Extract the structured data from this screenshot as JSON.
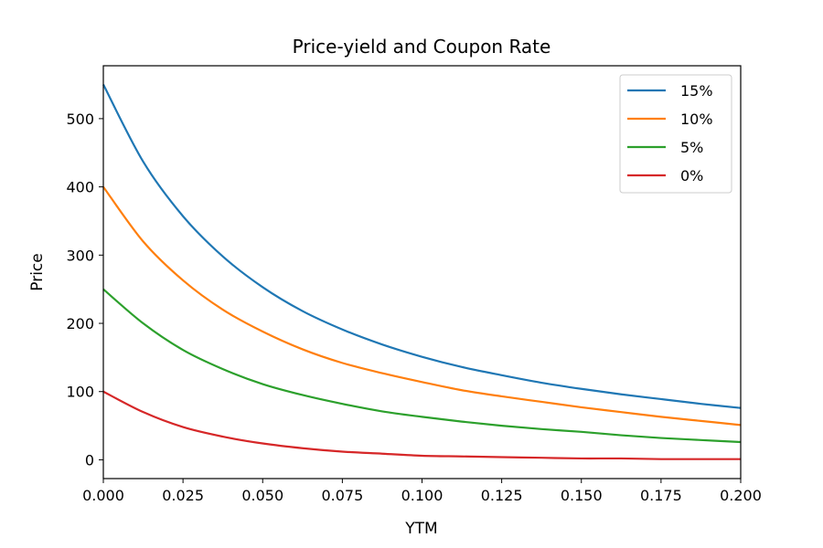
{
  "chart_data": {
    "type": "line",
    "title": "Price-yield and Coupon Rate",
    "xlabel": "YTM",
    "ylabel": "Price",
    "xlim": [
      0.0,
      0.2
    ],
    "ylim": [
      -27.5,
      577.5
    ],
    "x_ticks": [
      0.0,
      0.025,
      0.05,
      0.075,
      0.1,
      0.125,
      0.15,
      0.175,
      0.2
    ],
    "x_tick_labels": [
      "0.000",
      "0.025",
      "0.050",
      "0.075",
      "0.100",
      "0.125",
      "0.150",
      "0.175",
      "0.200"
    ],
    "y_ticks": [
      0,
      100,
      200,
      300,
      400,
      500
    ],
    "y_tick_labels": [
      "0",
      "100",
      "200",
      "300",
      "400",
      "500"
    ],
    "grid": false,
    "legend_position": "top-right",
    "x": [
      0.0,
      0.0125,
      0.025,
      0.0375,
      0.05,
      0.0625,
      0.075,
      0.0875,
      0.1,
      0.1125,
      0.125,
      0.1375,
      0.15,
      0.1625,
      0.175,
      0.1875,
      0.2
    ],
    "series": [
      {
        "name": "15%",
        "color": "#1f77b4",
        "values": [
          550,
          437,
          357,
          298,
          253,
          218,
          191,
          169,
          151,
          136,
          124,
          113,
          104,
          96,
          89,
          82,
          76
        ]
      },
      {
        "name": "10%",
        "color": "#ff7f0e",
        "values": [
          400,
          320,
          263,
          220,
          188,
          162,
          142,
          127,
          114,
          102,
          93,
          85,
          77,
          70,
          63,
          57,
          51
        ]
      },
      {
        "name": "5%",
        "color": "#2ca02c",
        "values": [
          250,
          200,
          161,
          133,
          111,
          95,
          82,
          71,
          63,
          56,
          50,
          45,
          41,
          36,
          32,
          29,
          26
        ]
      },
      {
        "name": "0%",
        "color": "#d62728",
        "values": [
          100,
          70,
          48,
          34,
          24,
          17,
          12,
          9,
          6,
          5,
          4,
          3,
          2,
          2,
          1,
          1,
          1
        ]
      }
    ]
  }
}
